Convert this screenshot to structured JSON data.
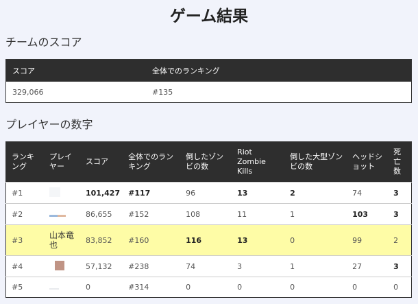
{
  "page": {
    "title": "ゲーム結果"
  },
  "team": {
    "title": "チームのスコア",
    "headers": [
      "スコア",
      "全体でのランキング"
    ],
    "score": "329,066",
    "ranking": "#135"
  },
  "players": {
    "title": "プレイヤーの数字",
    "headers": [
      "ランキング",
      "プレイヤー",
      "スコア",
      "全体でのランキング",
      "倒したゾンビの数",
      "Riot Zombie Kills",
      "倒した大型ゾンビの数",
      "ヘッドショット",
      "死亡数"
    ],
    "rows": [
      {
        "rank": "#1",
        "player": "",
        "avatar": "avatar-blank",
        "score": "101,427",
        "overall": "#117",
        "zombies": "96",
        "riot": "13",
        "big": "2",
        "headshots": "74",
        "deaths": "3"
      },
      {
        "rank": "#2",
        "player": "",
        "avatar": "avatar-strip",
        "score": "86,655",
        "overall": "#152",
        "zombies": "108",
        "riot": "11",
        "big": "1",
        "headshots": "103",
        "deaths": "3"
      },
      {
        "rank": "#3",
        "player": "山本竜也",
        "avatar": "",
        "score": "83,852",
        "overall": "#160",
        "zombies": "116",
        "riot": "13",
        "big": "0",
        "headshots": "99",
        "deaths": "2"
      },
      {
        "rank": "#4",
        "player": "",
        "avatar": "avatar-brown",
        "score": "57,132",
        "overall": "#238",
        "zombies": "74",
        "riot": "3",
        "big": "1",
        "headshots": "27",
        "deaths": "3"
      },
      {
        "rank": "#5",
        "player": "",
        "avatar": "avatar-faint",
        "score": "0",
        "overall": "#314",
        "zombies": "0",
        "riot": "0",
        "big": "0",
        "headshots": "0",
        "deaths": "0"
      }
    ]
  },
  "colors": {
    "header_bg": "#2e2e2e",
    "highlight_row": "#fefca6",
    "page_bg": "#f1f3fb"
  }
}
